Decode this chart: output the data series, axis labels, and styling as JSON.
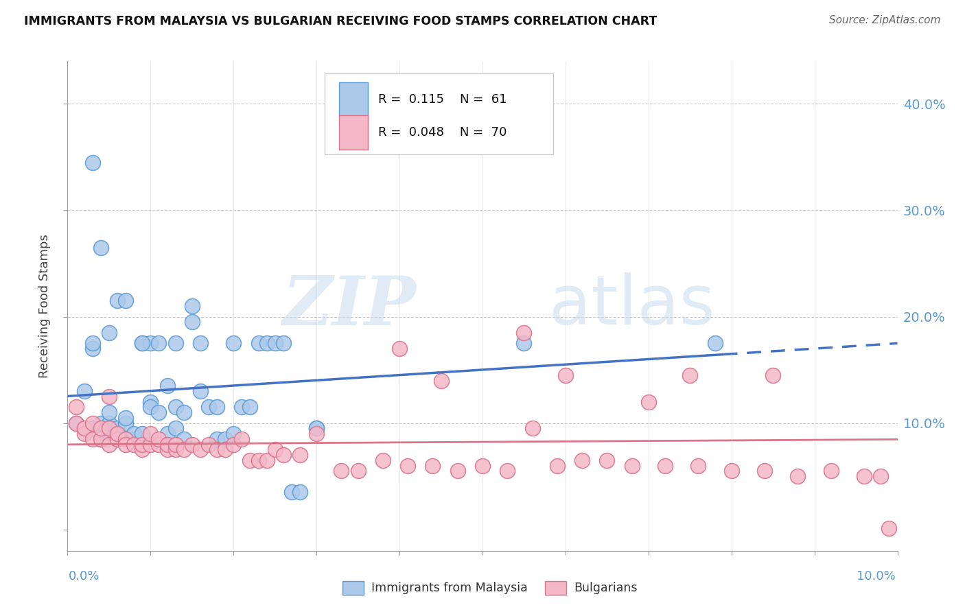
{
  "title": "IMMIGRANTS FROM MALAYSIA VS BULGARIAN RECEIVING FOOD STAMPS CORRELATION CHART",
  "source": "Source: ZipAtlas.com",
  "ylabel": "Receiving Food Stamps",
  "ytick_labels": [
    "",
    "10.0%",
    "20.0%",
    "30.0%",
    "40.0%"
  ],
  "ytick_vals": [
    0.0,
    0.1,
    0.2,
    0.3,
    0.4
  ],
  "xlim": [
    0.0,
    0.1
  ],
  "ylim": [
    -0.02,
    0.44
  ],
  "malaysia_color": "#adc9ea",
  "malaysia_edge_color": "#5b9bd5",
  "bulgarian_color": "#f4b8c8",
  "bulgarian_edge_color": "#d9748a",
  "trend_malaysia_color": "#4472c4",
  "trend_bulgarian_color": "#d9748a",
  "malaysia_R": 0.115,
  "malaysia_N": 61,
  "bulgarian_R": 0.048,
  "bulgarian_N": 70,
  "watermark_zip": "ZIP",
  "watermark_atlas": "atlas",
  "right_label_color": "#5b9bd5",
  "malaysia_x": [
    0.001,
    0.002,
    0.003,
    0.003,
    0.003,
    0.004,
    0.004,
    0.004,
    0.005,
    0.005,
    0.005,
    0.006,
    0.006,
    0.006,
    0.007,
    0.007,
    0.007,
    0.008,
    0.008,
    0.009,
    0.009,
    0.01,
    0.01,
    0.01,
    0.011,
    0.012,
    0.012,
    0.013,
    0.013,
    0.014,
    0.014,
    0.015,
    0.015,
    0.016,
    0.016,
    0.017,
    0.018,
    0.018,
    0.019,
    0.02,
    0.02,
    0.021,
    0.022,
    0.023,
    0.024,
    0.025,
    0.026,
    0.027,
    0.028,
    0.03,
    0.003,
    0.004,
    0.005,
    0.006,
    0.007,
    0.009,
    0.011,
    0.013,
    0.03,
    0.055,
    0.078
  ],
  "malaysia_y": [
    0.1,
    0.13,
    0.17,
    0.175,
    0.095,
    0.095,
    0.1,
    0.085,
    0.09,
    0.1,
    0.11,
    0.085,
    0.09,
    0.095,
    0.1,
    0.105,
    0.085,
    0.085,
    0.09,
    0.09,
    0.175,
    0.175,
    0.12,
    0.115,
    0.11,
    0.135,
    0.09,
    0.115,
    0.095,
    0.11,
    0.085,
    0.21,
    0.195,
    0.175,
    0.13,
    0.115,
    0.115,
    0.085,
    0.085,
    0.09,
    0.175,
    0.115,
    0.115,
    0.175,
    0.175,
    0.175,
    0.175,
    0.035,
    0.035,
    0.095,
    0.345,
    0.265,
    0.185,
    0.215,
    0.215,
    0.175,
    0.175,
    0.175,
    0.095,
    0.175,
    0.175
  ],
  "bulgarian_x": [
    0.001,
    0.001,
    0.002,
    0.002,
    0.003,
    0.003,
    0.004,
    0.004,
    0.005,
    0.005,
    0.005,
    0.006,
    0.006,
    0.007,
    0.007,
    0.008,
    0.009,
    0.009,
    0.01,
    0.01,
    0.011,
    0.011,
    0.012,
    0.012,
    0.013,
    0.013,
    0.014,
    0.015,
    0.016,
    0.017,
    0.018,
    0.019,
    0.02,
    0.021,
    0.022,
    0.023,
    0.024,
    0.025,
    0.026,
    0.028,
    0.03,
    0.033,
    0.035,
    0.038,
    0.041,
    0.044,
    0.047,
    0.05,
    0.053,
    0.056,
    0.059,
    0.062,
    0.065,
    0.068,
    0.072,
    0.076,
    0.08,
    0.084,
    0.088,
    0.092,
    0.096,
    0.098,
    0.099,
    0.04,
    0.045,
    0.055,
    0.06,
    0.07,
    0.075,
    0.085
  ],
  "bulgarian_y": [
    0.1,
    0.115,
    0.09,
    0.095,
    0.085,
    0.1,
    0.085,
    0.095,
    0.08,
    0.095,
    0.125,
    0.085,
    0.09,
    0.085,
    0.08,
    0.08,
    0.075,
    0.08,
    0.08,
    0.09,
    0.08,
    0.085,
    0.075,
    0.08,
    0.075,
    0.08,
    0.075,
    0.08,
    0.075,
    0.08,
    0.075,
    0.075,
    0.08,
    0.085,
    0.065,
    0.065,
    0.065,
    0.075,
    0.07,
    0.07,
    0.09,
    0.055,
    0.055,
    0.065,
    0.06,
    0.06,
    0.055,
    0.06,
    0.055,
    0.095,
    0.06,
    0.065,
    0.065,
    0.06,
    0.06,
    0.06,
    0.055,
    0.055,
    0.05,
    0.055,
    0.05,
    0.05,
    0.001,
    0.17,
    0.14,
    0.185,
    0.145,
    0.12,
    0.145,
    0.145
  ]
}
